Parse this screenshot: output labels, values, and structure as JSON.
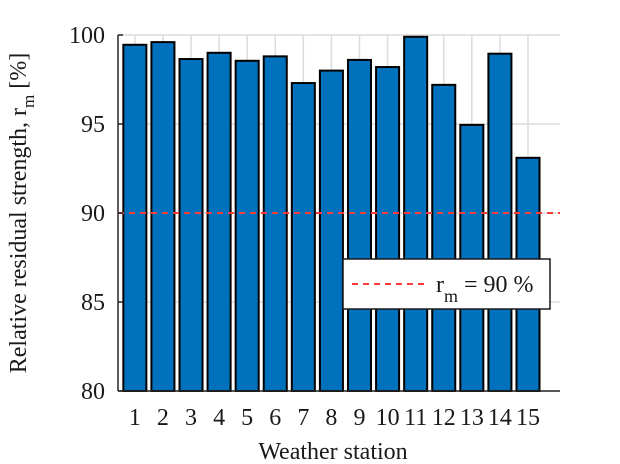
{
  "chart_data": {
    "type": "bar",
    "title": "",
    "xlabel": "Weather station",
    "ylabel": "Relative residual strength, r",
    "ylabel_subscript": "m",
    "ylabel_unit": "[%]",
    "categories": [
      "1",
      "2",
      "3",
      "4",
      "5",
      "6",
      "7",
      "8",
      "9",
      "10",
      "11",
      "12",
      "13",
      "14",
      "15"
    ],
    "values": [
      99.45,
      99.6,
      98.65,
      99.0,
      98.55,
      98.8,
      97.3,
      98.0,
      98.6,
      98.2,
      99.9,
      97.2,
      94.95,
      98.95,
      93.1
    ],
    "ylim": [
      80,
      100
    ],
    "yticks": [
      80,
      85,
      90,
      95,
      100
    ],
    "grid": true,
    "bar_color": "#0072BD",
    "reference_line": {
      "value": 90,
      "color": "#FF3B3B",
      "style": "dashed"
    },
    "legend": {
      "placement": "right-middle",
      "label_main": "r",
      "label_sub": "m",
      "label_rest": " = 90 %"
    }
  }
}
